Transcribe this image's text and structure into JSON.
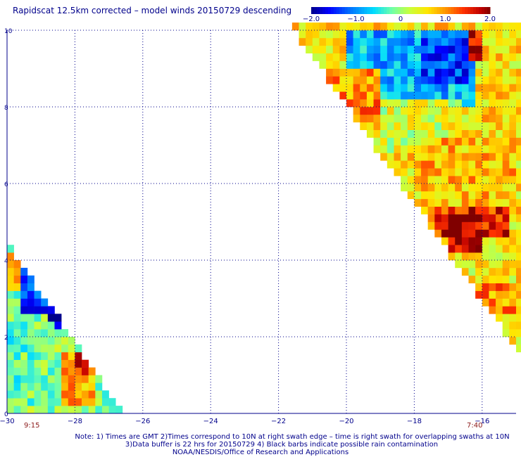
{
  "title": "Rapidscat 12.5km corrected – model winds 20150729 descending",
  "colorbar": {
    "tick_labels": [
      "−2.0",
      "−1.0",
      "0",
      "1.0",
      "2.0"
    ],
    "min": -2.0,
    "max": 2.0,
    "colors": [
      "#00008b",
      "#0000ff",
      "#0096ff",
      "#00e5ff",
      "#80ffa0",
      "#e0ff40",
      "#ffe000",
      "#ff9000",
      "#ff2000",
      "#b00000",
      "#800000"
    ]
  },
  "chart_data": {
    "type": "heatmap",
    "title": "Rapidscat 12.5km corrected – model winds 20150729 descending",
    "xlim": [
      -30,
      -15
    ],
    "ylim": [
      0,
      10
    ],
    "x_ticks": [
      -30,
      -28,
      -26,
      -24,
      -22,
      -20,
      -18,
      -16
    ],
    "y_ticks": [
      0,
      2,
      4,
      6,
      8,
      10
    ],
    "x_tick_labels": [
      "−30",
      "−28",
      "−26",
      "−24",
      "−22",
      "−20",
      "−18",
      "−16"
    ],
    "y_tick_labels": [
      "0",
      "2",
      "4",
      "6",
      "8",
      "10"
    ],
    "grid": true,
    "cell_size_deg": 0.2,
    "swaths": [
      {
        "name": "left swath",
        "time_label": "9:15",
        "x_start_at_y0": -30,
        "x_end_at_y0": -26.7,
        "top_lat": 4.3,
        "regions": [
          {
            "x": [
              -30,
              -29.6
            ],
            "y": [
              3.2,
              4.3
            ],
            "value": 0.9
          },
          {
            "x": [
              -29.6,
              -28.4
            ],
            "y": [
              2.6,
              4.0
            ],
            "value": -1.4
          },
          {
            "x": [
              -28.8,
              -28.2
            ],
            "y": [
              2.2,
              2.8
            ],
            "value": -1.9
          },
          {
            "x": [
              -30,
              -28.6
            ],
            "y": [
              0.2,
              2.4
            ],
            "value": -0.2
          },
          {
            "x": [
              -28.4,
              -27.4
            ],
            "y": [
              0.2,
              1.6
            ],
            "value": 0.9
          },
          {
            "x": [
              -28.0,
              -27.6
            ],
            "y": [
              1.0,
              1.6
            ],
            "value": 1.6
          }
        ]
      },
      {
        "name": "right swath",
        "time_label": "7:40",
        "x_start_at_y10": -21.7,
        "top_lat": 10,
        "regions": [
          {
            "x": [
              -20.0,
              -16.2
            ],
            "y": [
              8.0,
              10.0
            ],
            "value": -0.8
          },
          {
            "x": [
              -17.8,
              -16.4
            ],
            "y": [
              8.6,
              10.0
            ],
            "value": -1.3
          },
          {
            "x": [
              -16.4,
              -16.0
            ],
            "y": [
              9.2,
              10.0
            ],
            "value": 1.7
          },
          {
            "x": [
              -20.6,
              -19.0
            ],
            "y": [
              7.6,
              9.0
            ],
            "value": 1.0
          },
          {
            "x": [
              -19.0,
              -16.6
            ],
            "y": [
              6.8,
              8.2
            ],
            "value": 0.3
          },
          {
            "x": [
              -17.8,
              -15.0
            ],
            "y": [
              5.4,
              7.2
            ],
            "value": 0.8
          },
          {
            "x": [
              -17.4,
              -15.2
            ],
            "y": [
              4.6,
              5.4
            ],
            "value": 1.5
          },
          {
            "x": [
              -17.0,
              -16.0
            ],
            "y": [
              4.2,
              5.2
            ],
            "value": 1.8
          },
          {
            "x": [
              -16.4,
              -15.0
            ],
            "y": [
              2.2,
              4.2
            ],
            "value": 0.5
          },
          {
            "x": [
              -16.2,
              -15.0
            ],
            "y": [
              2.6,
              3.4
            ],
            "value": 1.0
          }
        ]
      }
    ]
  },
  "footer": {
    "time_left": "9:15",
    "time_right": "7:40",
    "note_line1": "Note: 1) Times are GMT 2)Times correspond to 10N at right swath edge – time is right swath for overlapping swaths at 10N",
    "note_line2": "3)Data buffer is 22 hrs for 20150729 4) Black barbs indicate possible rain contamination",
    "note_line3": "NOAA/NESDIS/Office of Research and Applications"
  }
}
